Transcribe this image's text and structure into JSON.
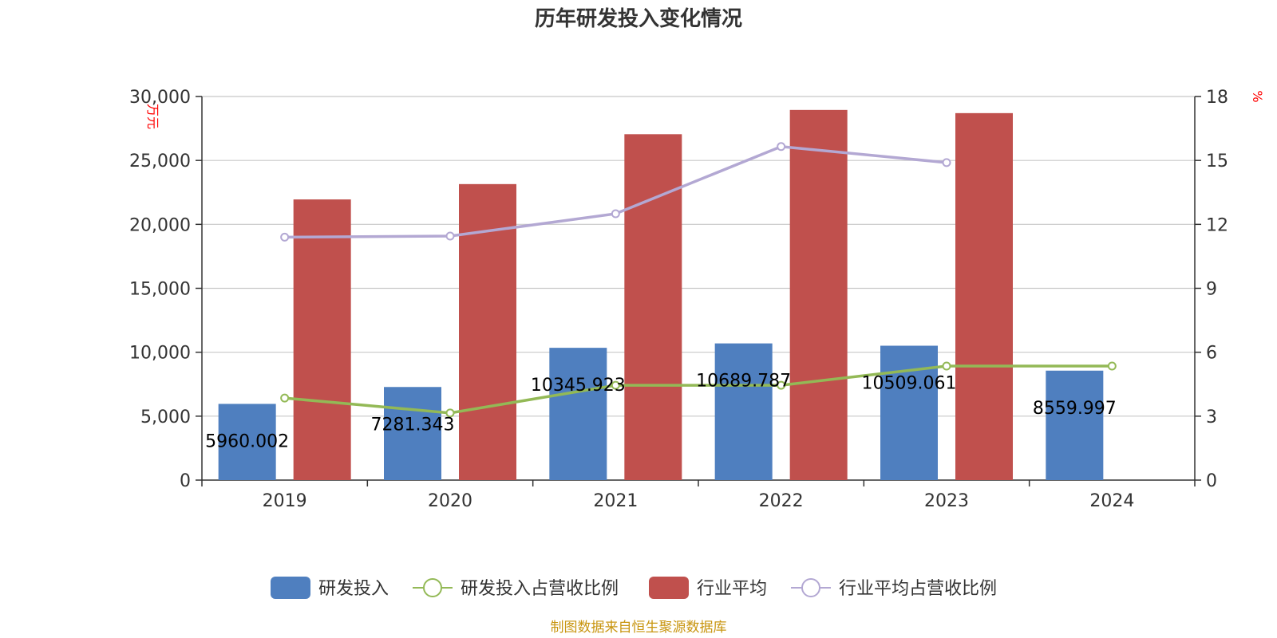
{
  "chart_data": {
    "type": "bar",
    "title": "历年研发投入变化情况",
    "categories": [
      "2019",
      "2020",
      "2021",
      "2022",
      "2023",
      "2024"
    ],
    "left_axis": {
      "unit": "万元",
      "ylim": [
        0,
        30000
      ],
      "ticks": [
        "0",
        "5,000",
        "10,000",
        "15,000",
        "20,000",
        "25,000",
        "30,000"
      ]
    },
    "right_axis": {
      "unit": "%",
      "ylim": [
        0,
        18
      ],
      "ticks": [
        "0",
        "3",
        "6",
        "9",
        "12",
        "15",
        "18"
      ]
    },
    "series": [
      {
        "name": "研发投入",
        "kind": "bar",
        "axis": "left",
        "color": "#4f7fbf",
        "values": [
          5960.002,
          7281.343,
          10345.923,
          10689.787,
          10509.061,
          8559.997
        ],
        "labels": [
          "5960.002",
          "7281.343",
          "10345.923",
          "10689.787",
          "10509.061",
          "8559.997"
        ]
      },
      {
        "name": "研发投入占营收比例",
        "kind": "line",
        "axis": "right",
        "color": "#93b956",
        "values": [
          3.85,
          3.15,
          4.45,
          4.45,
          5.35,
          5.35
        ]
      },
      {
        "name": "行业平均",
        "kind": "bar",
        "axis": "left",
        "color": "#c0504d",
        "values": [
          21950,
          23150,
          27050,
          28950,
          28700,
          null
        ]
      },
      {
        "name": "行业平均占营收比例",
        "kind": "line",
        "axis": "right",
        "color": "#b3a8d3",
        "values": [
          11.4,
          11.45,
          12.5,
          15.65,
          14.9,
          null
        ]
      }
    ],
    "grid": true,
    "legend_position": "bottom"
  },
  "source_text": "制图数据来自恒生聚源数据库"
}
